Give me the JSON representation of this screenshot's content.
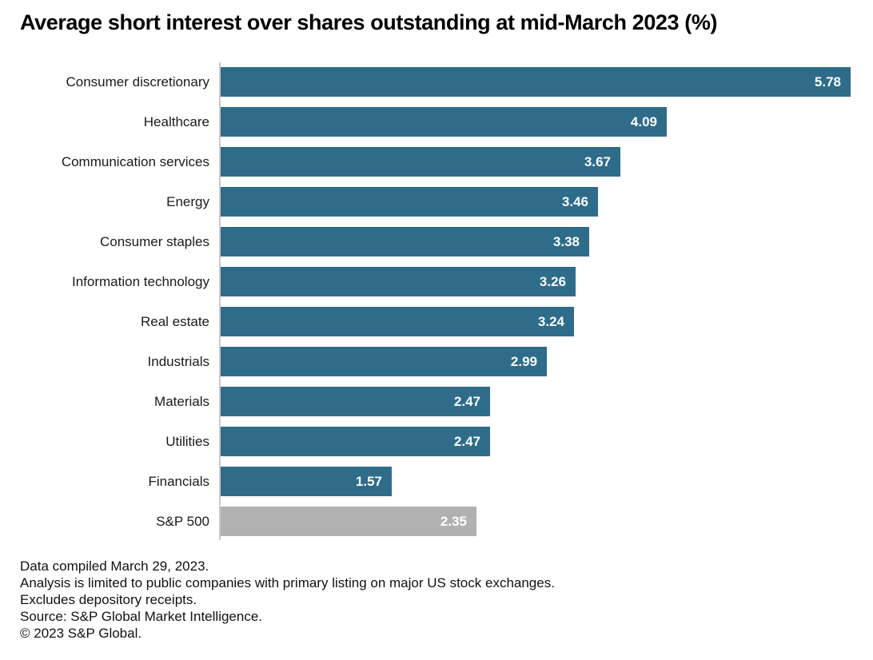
{
  "title": "Average short interest over shares outstanding at mid-March 2023 (%)",
  "chart_data": {
    "type": "bar",
    "orientation": "horizontal",
    "title": "Average short interest over shares outstanding at mid-March 2023 (%)",
    "categories": [
      "Consumer discretionary",
      "Healthcare",
      "Communication services",
      "Energy",
      "Consumer staples",
      "Information technology",
      "Real estate",
      "Industrials",
      "Materials",
      "Utilities",
      "Financials",
      "S&P 500"
    ],
    "values": [
      5.78,
      4.09,
      3.67,
      3.46,
      3.38,
      3.26,
      3.24,
      2.99,
      2.47,
      2.47,
      1.57,
      2.35
    ],
    "xlim": [
      0,
      5.78
    ],
    "grid": false,
    "legend": false,
    "value_labels": "inside-end",
    "bar_color": "#2e6c8a",
    "highlight_category": "S&P 500",
    "highlight_color": "#b1b1b1",
    "value_label_color": "#ffffff",
    "axis_line_color": "#c9c9c9"
  },
  "footnotes": [
    "Data compiled March 29, 2023.",
    "Analysis is limited to public companies with primary listing on major US stock exchanges.",
    "Excludes depository receipts.",
    "Source: S&P Global Market Intelligence.",
    "© 2023 S&P Global."
  ]
}
